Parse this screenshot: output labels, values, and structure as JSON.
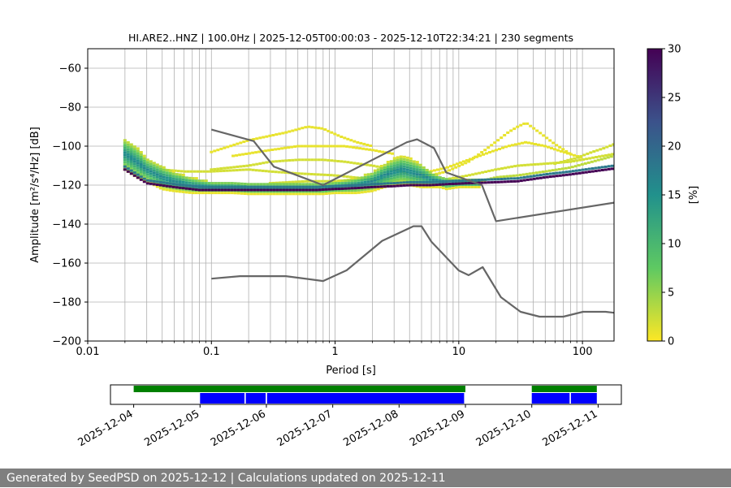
{
  "chart_data": [
    {
      "type": "heatmap",
      "title": "HI.ARE2..HNZ | 100.0Hz | 2025-12-05T00:00:03 - 2025-12-10T22:34:21 | 230 segments",
      "xlabel": "Period [s]",
      "ylabel": "Amplitude [m²/s⁴/Hz] [dB]",
      "xscale": "log",
      "xlim": [
        0.01,
        180
      ],
      "ylim": [
        -200,
        -50
      ],
      "xticks": [
        {
          "value": 0.01,
          "label": "0.01"
        },
        {
          "value": 0.1,
          "label": "0.1"
        },
        {
          "value": 1,
          "label": "1"
        },
        {
          "value": 10,
          "label": "10"
        },
        {
          "value": 100,
          "label": "100"
        }
      ],
      "yticks": [
        {
          "value": -60,
          "label": "−60"
        },
        {
          "value": -80,
          "label": "−80"
        },
        {
          "value": -100,
          "label": "−100"
        },
        {
          "value": -120,
          "label": "−120"
        },
        {
          "value": -140,
          "label": "−140"
        },
        {
          "value": -160,
          "label": "−160"
        },
        {
          "value": -180,
          "label": "−180"
        },
        {
          "value": -200,
          "label": "−200"
        }
      ],
      "grid": "vertical minor+major on log x",
      "colorbar": {
        "label": "[%]",
        "range": [
          0,
          30
        ],
        "ticks": [
          {
            "value": 0,
            "label": "0"
          },
          {
            "value": 5,
            "label": "5"
          },
          {
            "value": 10,
            "label": "10"
          },
          {
            "value": 15,
            "label": "15"
          },
          {
            "value": 20,
            "label": "20"
          },
          {
            "value": 25,
            "label": "25"
          },
          {
            "value": 30,
            "label": "30"
          }
        ],
        "colormap": [
          "#fde725",
          "#5ec962",
          "#21918c",
          "#3b528b",
          "#440154"
        ]
      },
      "mode_line": {
        "name": "PSD mode (dark core)",
        "x": [
          0.02,
          0.03,
          0.05,
          0.08,
          0.12,
          0.2,
          0.4,
          0.7,
          1,
          1.5,
          2,
          3,
          4,
          6,
          8,
          12,
          20,
          30,
          50,
          80,
          120,
          180
        ],
        "y": [
          -112,
          -119,
          -121,
          -122.5,
          -122.5,
          -122.5,
          -122.5,
          -122.5,
          -122,
          -121.5,
          -121,
          -120.5,
          -120,
          -120,
          -119.5,
          -119,
          -118.5,
          -118,
          -116,
          -114.5,
          -113,
          -111.5
        ]
      },
      "density_bands": [
        {
          "x": [
            0.02,
            0.025,
            0.03,
            0.04,
            0.05,
            0.07,
            0.1,
            0.15,
            0.2,
            0.3,
            0.5,
            0.8,
            1,
            1.5,
            2,
            2.5,
            3,
            3.5,
            4,
            5,
            6,
            7,
            8,
            10,
            12,
            15
          ],
          "y": [
            -104,
            -108,
            -112,
            -116,
            -118,
            -120,
            -121,
            -121,
            -121.5,
            -121.5,
            -121.5,
            -121.5,
            -121,
            -120,
            -118,
            -115,
            -113,
            -112,
            -113,
            -115,
            -117,
            -118,
            -119,
            -119,
            -119,
            -119
          ],
          "thickness_db": [
            8,
            8,
            6,
            6,
            5,
            4,
            3,
            3,
            3,
            3,
            3,
            3,
            3,
            4,
            5,
            6,
            7,
            7,
            7,
            6,
            4,
            3,
            3,
            2,
            2,
            2
          ],
          "percent": 12
        }
      ],
      "sparse_curves": [
        {
          "x": [
            0.1,
            0.2,
            0.4,
            0.6,
            0.8,
            1.1,
            1.5,
            2
          ],
          "y": [
            -103,
            -97,
            -93,
            -90,
            -91,
            -95,
            -98,
            -100
          ],
          "percent": 1
        },
        {
          "x": [
            0.15,
            0.3,
            0.5,
            0.8,
            1.2,
            2,
            3
          ],
          "y": [
            -105,
            -102,
            -100,
            -100,
            -100,
            -102,
            -104
          ],
          "percent": 1
        },
        {
          "x": [
            0.1,
            0.2,
            0.3,
            0.5,
            0.8,
            1.2,
            2,
            3,
            4
          ],
          "y": [
            -112,
            -110,
            -108,
            -107,
            -107,
            -108,
            -110,
            -112,
            -114
          ],
          "percent": 2
        },
        {
          "x": [
            0.04,
            0.06,
            0.1,
            0.2,
            0.3,
            0.5,
            1,
            2,
            3
          ],
          "y": [
            -112,
            -113,
            -113,
            -112,
            -113,
            -114,
            -115,
            -117,
            -118
          ],
          "percent": 2
        },
        {
          "x": [
            0.3,
            0.6,
            1,
            1.5,
            2,
            3,
            4
          ],
          "y": [
            -119,
            -118,
            -118,
            -117,
            -117,
            -117,
            -118
          ],
          "percent": 2
        },
        {
          "x": [
            3,
            5,
            8,
            12,
            18,
            25,
            30,
            35,
            45,
            60,
            80
          ],
          "y": [
            -118,
            -116,
            -113,
            -108,
            -100,
            -93,
            -90,
            -88,
            -93,
            -99,
            -104
          ],
          "percent": 1
        },
        {
          "x": [
            5,
            8,
            12,
            18,
            25,
            35,
            50,
            70,
            100
          ],
          "y": [
            -114,
            -111,
            -107,
            -103,
            -100,
            -98,
            -100,
            -103,
            -106
          ],
          "percent": 1
        },
        {
          "x": [
            8,
            12,
            20,
            30,
            50,
            80,
            120,
            180
          ],
          "y": [
            -117,
            -115,
            -112,
            -110,
            -109,
            -108,
            -106,
            -104
          ],
          "percent": 2
        },
        {
          "x": [
            10,
            15,
            20,
            30,
            50,
            80,
            120,
            180
          ],
          "y": [
            -119,
            -118,
            -116,
            -115,
            -113,
            -111,
            -108,
            -105
          ],
          "percent": 3
        },
        {
          "x": [
            60,
            90,
            120,
            150,
            180
          ],
          "y": [
            -109,
            -106,
            -103,
            -101,
            -99
          ],
          "percent": 2
        }
      ],
      "reference_curves": [
        {
          "name": "New High Noise Model",
          "x": [
            0.1,
            0.22,
            0.32,
            0.8,
            3.8,
            4.6,
            6.3,
            7.9,
            15.4,
            20,
            180
          ],
          "y": [
            -91.5,
            -97.4,
            -110.5,
            -120,
            -98,
            -96.5,
            -101,
            -113.5,
            -120,
            -138.5,
            -129
          ]
        },
        {
          "name": "New Low Noise Model",
          "x": [
            0.1,
            0.17,
            0.4,
            0.8,
            1.24,
            2.4,
            4.3,
            5,
            6,
            10,
            12,
            15.6,
            21.9,
            31.6,
            45,
            70,
            101,
            154,
            180
          ],
          "y": [
            -168,
            -166.7,
            -166.7,
            -169.2,
            -163.7,
            -148.6,
            -141.1,
            -141.1,
            -149,
            -163.8,
            -166.2,
            -162.1,
            -177.5,
            -185,
            -187.5,
            -187.5,
            -185,
            -185,
            -185.5
          ]
        }
      ]
    },
    {
      "type": "timeline",
      "xlabels": [
        "2025-12-04",
        "2025-12-05",
        "2025-12-06",
        "2025-12-07",
        "2025-12-08",
        "2025-12-09",
        "2025-12-10",
        "2025-12-11"
      ],
      "xlim_days": [
        -0.35,
        7.35
      ],
      "series": [
        {
          "name": "data availability",
          "color": "#008000",
          "segments": [
            [
              0,
              5.0
            ],
            [
              6.0,
              6.98
            ]
          ]
        },
        {
          "name": "processed segments",
          "color": "#0000ff",
          "segments": [
            [
              1.0,
              1.67
            ],
            [
              1.69,
              1.99
            ],
            [
              2.01,
              4.98
            ],
            [
              6.0,
              6.57
            ],
            [
              6.59,
              6.98
            ]
          ]
        }
      ]
    }
  ],
  "footer": {
    "text": "Generated by SeedPSD on 2025-12-12 | Calculations updated on 2025-12-11"
  }
}
